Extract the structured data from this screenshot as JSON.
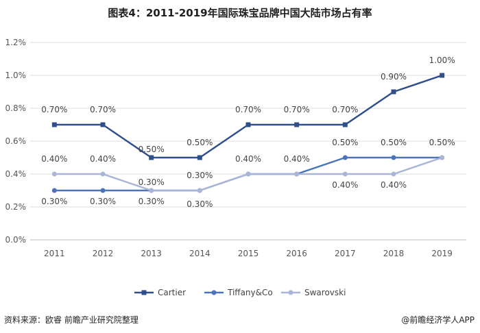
{
  "footer": {
    "source": "资料来源：欧睿 前瞻产业研究院整理",
    "brand": "@前瞻经济学人APP"
  },
  "chart_data": {
    "type": "line",
    "title": "图表4：2011-2019年国际珠宝品牌中国大陆市场占有率",
    "xlabel": "",
    "ylabel": "",
    "categories": [
      "2011",
      "2012",
      "2013",
      "2014",
      "2015",
      "2016",
      "2017",
      "2018",
      "2019"
    ],
    "series": [
      {
        "name": "Cartier",
        "color": "#2f4f8a",
        "values": [
          0.7,
          0.7,
          0.5,
          0.5,
          0.7,
          0.7,
          0.7,
          0.9,
          1.0
        ],
        "labels": [
          "0.70%",
          "0.70%",
          "0.50%",
          "0.50%",
          "0.70%",
          "0.70%",
          "0.70%",
          "0.90%",
          "1.00%"
        ]
      },
      {
        "name": "Tiffany&Co",
        "color": "#4a73b8",
        "values": [
          0.3,
          0.3,
          0.3,
          0.3,
          0.4,
          0.4,
          0.5,
          0.5,
          0.5
        ],
        "labels": [
          "0.30%",
          "0.30%",
          "0.30%",
          "0.30%",
          "0.40%",
          "0.40%",
          "0.50%",
          "0.50%",
          "0.50%"
        ]
      },
      {
        "name": "Swarovski",
        "color": "#a9b5d6",
        "values": [
          0.4,
          0.4,
          0.3,
          0.3,
          0.4,
          0.4,
          0.4,
          0.4,
          0.5
        ],
        "labels": [
          "0.40%",
          "0.40%",
          "0.30%",
          "0.30%",
          "",
          "",
          "0.40%",
          "0.40%",
          ""
        ]
      }
    ],
    "yticks": [
      "0.0%",
      "0.2%",
      "0.4%",
      "0.6%",
      "0.8%",
      "1.0%",
      "1.2%"
    ],
    "ylim": [
      0,
      1.2
    ],
    "grid": true,
    "legend": "bottom"
  }
}
